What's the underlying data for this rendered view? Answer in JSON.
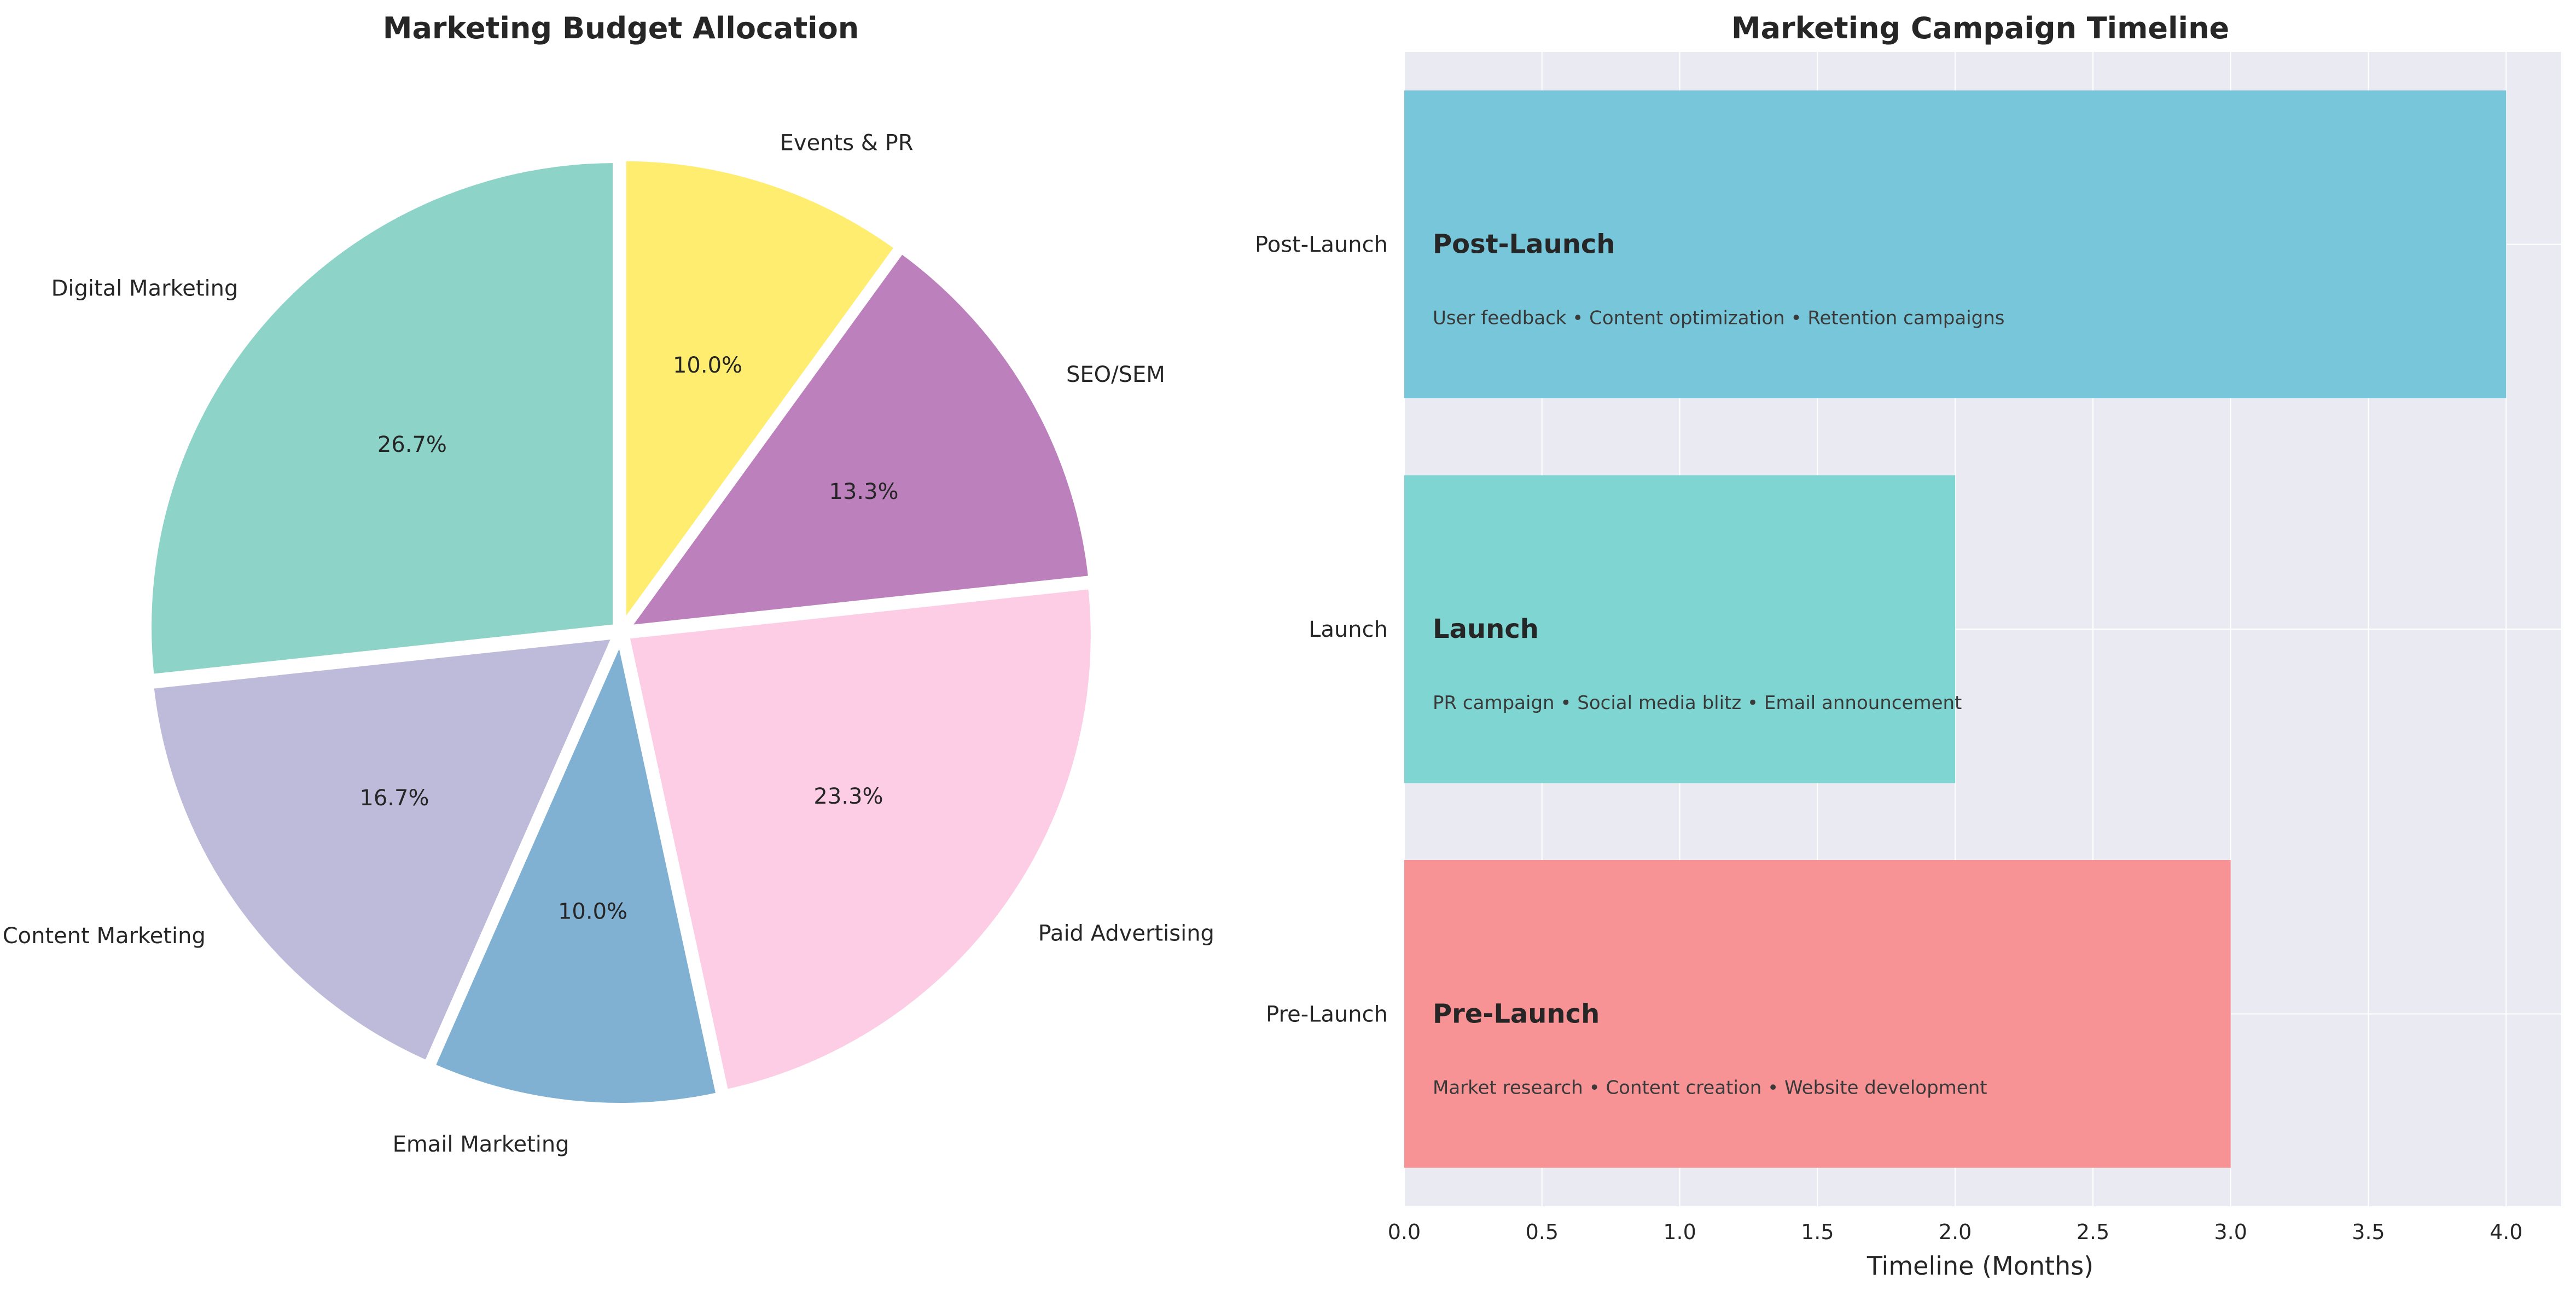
{
  "chart_data": [
    {
      "type": "pie",
      "title": "Marketing Budget Allocation",
      "start_angle_deg": 90,
      "direction": "clockwise",
      "slices": [
        {
          "label": "Events & PR",
          "value": 10.0,
          "pct_label": "10.0%",
          "color": "#FFED6F"
        },
        {
          "label": "SEO/SEM",
          "value": 13.3,
          "pct_label": "13.3%",
          "color": "#BC80BD"
        },
        {
          "label": "Paid Advertising",
          "value": 23.3,
          "pct_label": "23.3%",
          "color": "#FCCDE5"
        },
        {
          "label": "Email Marketing",
          "value": 10.0,
          "pct_label": "10.0%",
          "color": "#80B1D3"
        },
        {
          "label": "Content Marketing",
          "value": 16.7,
          "pct_label": "16.7%",
          "color": "#BEBADA"
        },
        {
          "label": "Digital Marketing",
          "value": 26.7,
          "pct_label": "26.7%",
          "color": "#8DD3C7"
        }
      ]
    },
    {
      "type": "bar",
      "orientation": "horizontal",
      "title": "Marketing Campaign Timeline",
      "xlabel": "Timeline (Months)",
      "xlim": [
        0,
        4.2
      ],
      "xticks": [
        "0.0",
        "0.5",
        "1.0",
        "1.5",
        "2.0",
        "2.5",
        "3.0",
        "3.5",
        "4.0"
      ],
      "grid": true,
      "background": "#EAEAF2",
      "categories": [
        "Pre-Launch",
        "Launch",
        "Post-Launch"
      ],
      "bars": [
        {
          "category": "Pre-Launch",
          "value": 3.0,
          "title": "Pre-Launch",
          "description": "Market research • Content creation • Website development",
          "color": "#F79295"
        },
        {
          "category": "Launch",
          "value": 2.0,
          "title": "Launch",
          "description": "PR campaign • Social media blitz • Email announcement",
          "color": "#7FD5D1"
        },
        {
          "category": "Post-Launch",
          "value": 4.0,
          "title": "Post-Launch",
          "description": "User feedback • Content optimization • Retention campaigns",
          "color": "#77C6D9"
        }
      ]
    }
  ]
}
